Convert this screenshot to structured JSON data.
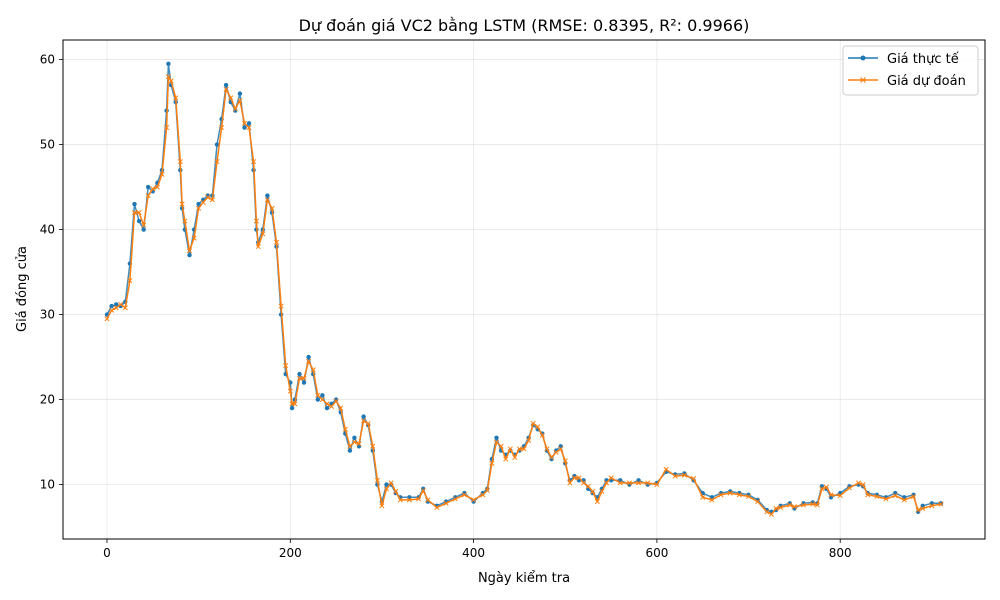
{
  "chart_data": {
    "type": "line",
    "title": "Dự đoán giá VC2 bằng LSTM (RMSE: 0.8395, R²: 0.9966)",
    "xlabel": "Ngày kiểm tra",
    "ylabel": "Giá đóng cửa",
    "xlim": [
      -48,
      958
    ],
    "ylim": [
      3.6,
      62.3
    ],
    "xticks": [
      0,
      200,
      400,
      600,
      800
    ],
    "yticks": [
      10,
      20,
      30,
      40,
      50,
      60
    ],
    "grid": true,
    "legend_position": "top-right",
    "series": [
      {
        "name": "Giá thực tế",
        "color": "#1f77b4",
        "marker": "circle",
        "points": [
          [
            0,
            30
          ],
          [
            5,
            31
          ],
          [
            10,
            31.2
          ],
          [
            15,
            31
          ],
          [
            20,
            31.5
          ],
          [
            25,
            36
          ],
          [
            30,
            43
          ],
          [
            35,
            41
          ],
          [
            40,
            40
          ],
          [
            45,
            45
          ],
          [
            50,
            44.5
          ],
          [
            55,
            45.5
          ],
          [
            60,
            47
          ],
          [
            65,
            54
          ],
          [
            67,
            59.5
          ],
          [
            70,
            57
          ],
          [
            75,
            55
          ],
          [
            80,
            47
          ],
          [
            82,
            42.5
          ],
          [
            85,
            40
          ],
          [
            90,
            37
          ],
          [
            95,
            40
          ],
          [
            100,
            43
          ],
          [
            105,
            43.5
          ],
          [
            110,
            44
          ],
          [
            115,
            44
          ],
          [
            120,
            50
          ],
          [
            125,
            53
          ],
          [
            130,
            57
          ],
          [
            135,
            55
          ],
          [
            140,
            54
          ],
          [
            145,
            56
          ],
          [
            150,
            52
          ],
          [
            155,
            52.5
          ],
          [
            160,
            47
          ],
          [
            163,
            40
          ],
          [
            165,
            38.5
          ],
          [
            170,
            40
          ],
          [
            175,
            44
          ],
          [
            180,
            42
          ],
          [
            185,
            38
          ],
          [
            190,
            30
          ],
          [
            195,
            23
          ],
          [
            200,
            22
          ],
          [
            202,
            19
          ],
          [
            205,
            20
          ],
          [
            210,
            23
          ],
          [
            215,
            22
          ],
          [
            220,
            25
          ],
          [
            225,
            23
          ],
          [
            230,
            20
          ],
          [
            235,
            20.5
          ],
          [
            240,
            19
          ],
          [
            245,
            19.5
          ],
          [
            250,
            20
          ],
          [
            255,
            18.5
          ],
          [
            260,
            16
          ],
          [
            265,
            14
          ],
          [
            270,
            15.5
          ],
          [
            275,
            14.5
          ],
          [
            280,
            18
          ],
          [
            285,
            17
          ],
          [
            290,
            14
          ],
          [
            295,
            10
          ],
          [
            300,
            8
          ],
          [
            305,
            10
          ],
          [
            310,
            10
          ],
          [
            315,
            9
          ],
          [
            320,
            8.5
          ],
          [
            330,
            8.5
          ],
          [
            340,
            8.5
          ],
          [
            345,
            9.5
          ],
          [
            350,
            8
          ],
          [
            360,
            7.5
          ],
          [
            370,
            8
          ],
          [
            380,
            8.5
          ],
          [
            390,
            9
          ],
          [
            400,
            8
          ],
          [
            410,
            9
          ],
          [
            415,
            9.5
          ],
          [
            420,
            13
          ],
          [
            425,
            15.5
          ],
          [
            430,
            14
          ],
          [
            435,
            13.5
          ],
          [
            440,
            14
          ],
          [
            445,
            13.5
          ],
          [
            450,
            14
          ],
          [
            455,
            14.5
          ],
          [
            460,
            15.5
          ],
          [
            465,
            17
          ],
          [
            470,
            16.5
          ],
          [
            475,
            16
          ],
          [
            480,
            14
          ],
          [
            485,
            13
          ],
          [
            490,
            14
          ],
          [
            495,
            14.5
          ],
          [
            500,
            12.5
          ],
          [
            505,
            10.5
          ],
          [
            510,
            11
          ],
          [
            515,
            10.5
          ],
          [
            520,
            10.5
          ],
          [
            525,
            9.5
          ],
          [
            530,
            9
          ],
          [
            535,
            8.5
          ],
          [
            540,
            9.5
          ],
          [
            545,
            10.5
          ],
          [
            550,
            10.5
          ],
          [
            560,
            10.5
          ],
          [
            570,
            10
          ],
          [
            580,
            10.5
          ],
          [
            590,
            10
          ],
          [
            600,
            10.2
          ],
          [
            610,
            11.5
          ],
          [
            620,
            11.2
          ],
          [
            630,
            11.3
          ],
          [
            640,
            10.5
          ],
          [
            650,
            9
          ],
          [
            660,
            8.5
          ],
          [
            670,
            9
          ],
          [
            680,
            9.2
          ],
          [
            690,
            9
          ],
          [
            700,
            8.8
          ],
          [
            710,
            8.2
          ],
          [
            720,
            7
          ],
          [
            725,
            6.8
          ],
          [
            730,
            7
          ],
          [
            735,
            7.5
          ],
          [
            745,
            7.8
          ],
          [
            750,
            7.2
          ],
          [
            760,
            7.8
          ],
          [
            770,
            7.9
          ],
          [
            775,
            7.8
          ],
          [
            780,
            9.8
          ],
          [
            785,
            9.5
          ],
          [
            790,
            8.5
          ],
          [
            800,
            9
          ],
          [
            810,
            9.8
          ],
          [
            820,
            10
          ],
          [
            825,
            9.8
          ],
          [
            830,
            9
          ],
          [
            840,
            8.8
          ],
          [
            850,
            8.5
          ],
          [
            860,
            9
          ],
          [
            870,
            8.5
          ],
          [
            880,
            8.8
          ],
          [
            885,
            6.8
          ],
          [
            890,
            7.5
          ],
          [
            900,
            7.8
          ],
          [
            910,
            7.8
          ]
        ]
      },
      {
        "name": "Giá dự đoán",
        "color": "#ff7f0e",
        "marker": "x",
        "points": [
          [
            0,
            29.5
          ],
          [
            5,
            30.5
          ],
          [
            10,
            30.8
          ],
          [
            15,
            31.2
          ],
          [
            20,
            30.8
          ],
          [
            25,
            34
          ],
          [
            30,
            42
          ],
          [
            35,
            42
          ],
          [
            40,
            40.5
          ],
          [
            45,
            44
          ],
          [
            50,
            44.8
          ],
          [
            55,
            45
          ],
          [
            60,
            46.5
          ],
          [
            65,
            52
          ],
          [
            67,
            58
          ],
          [
            70,
            57.5
          ],
          [
            75,
            55.5
          ],
          [
            80,
            48
          ],
          [
            82,
            43
          ],
          [
            85,
            41
          ],
          [
            90,
            37.5
          ],
          [
            95,
            39
          ],
          [
            100,
            42.5
          ],
          [
            105,
            43.2
          ],
          [
            110,
            43.8
          ],
          [
            115,
            43.5
          ],
          [
            120,
            48
          ],
          [
            125,
            52
          ],
          [
            130,
            56.5
          ],
          [
            135,
            55.5
          ],
          [
            140,
            54.2
          ],
          [
            145,
            55.2
          ],
          [
            150,
            52.5
          ],
          [
            155,
            52
          ],
          [
            160,
            48
          ],
          [
            163,
            41
          ],
          [
            165,
            38
          ],
          [
            170,
            39.5
          ],
          [
            175,
            43.5
          ],
          [
            180,
            42.5
          ],
          [
            185,
            38.5
          ],
          [
            190,
            31
          ],
          [
            195,
            24
          ],
          [
            200,
            21
          ],
          [
            202,
            19.5
          ],
          [
            205,
            19.5
          ],
          [
            210,
            22.5
          ],
          [
            215,
            22.5
          ],
          [
            220,
            24.5
          ],
          [
            225,
            23.5
          ],
          [
            230,
            20.5
          ],
          [
            235,
            20
          ],
          [
            240,
            19.5
          ],
          [
            245,
            19.2
          ],
          [
            250,
            19.8
          ],
          [
            255,
            19
          ],
          [
            260,
            16.5
          ],
          [
            265,
            14.5
          ],
          [
            270,
            15
          ],
          [
            275,
            14.8
          ],
          [
            280,
            17.5
          ],
          [
            285,
            17.2
          ],
          [
            290,
            14.5
          ],
          [
            295,
            10.5
          ],
          [
            300,
            7.5
          ],
          [
            305,
            9.5
          ],
          [
            310,
            10.2
          ],
          [
            315,
            9.2
          ],
          [
            320,
            8.2
          ],
          [
            330,
            8.2
          ],
          [
            340,
            8.3
          ],
          [
            345,
            9.3
          ],
          [
            350,
            8.2
          ],
          [
            360,
            7.3
          ],
          [
            370,
            7.8
          ],
          [
            380,
            8.3
          ],
          [
            390,
            8.8
          ],
          [
            400,
            8.2
          ],
          [
            410,
            8.8
          ],
          [
            415,
            9.3
          ],
          [
            420,
            12.5
          ],
          [
            425,
            15
          ],
          [
            430,
            14.5
          ],
          [
            435,
            13
          ],
          [
            440,
            14.2
          ],
          [
            445,
            13.2
          ],
          [
            450,
            14.2
          ],
          [
            455,
            14.2
          ],
          [
            460,
            15.2
          ],
          [
            465,
            17.2
          ],
          [
            470,
            16.8
          ],
          [
            475,
            15.8
          ],
          [
            480,
            14.2
          ],
          [
            485,
            13.2
          ],
          [
            490,
            13.8
          ],
          [
            495,
            14.2
          ],
          [
            500,
            12.8
          ],
          [
            505,
            10.2
          ],
          [
            510,
            10.8
          ],
          [
            515,
            10.8
          ],
          [
            520,
            10.2
          ],
          [
            525,
            9.8
          ],
          [
            530,
            9.2
          ],
          [
            535,
            8
          ],
          [
            540,
            9.2
          ],
          [
            545,
            10.2
          ],
          [
            550,
            10.8
          ],
          [
            560,
            10.2
          ],
          [
            570,
            10.2
          ],
          [
            580,
            10.2
          ],
          [
            590,
            10.2
          ],
          [
            600,
            10
          ],
          [
            610,
            11.8
          ],
          [
            620,
            11
          ],
          [
            630,
            11.1
          ],
          [
            640,
            10.7
          ],
          [
            650,
            8.5
          ],
          [
            660,
            8.2
          ],
          [
            670,
            8.8
          ],
          [
            680,
            9
          ],
          [
            690,
            8.8
          ],
          [
            700,
            8.6
          ],
          [
            710,
            8
          ],
          [
            720,
            6.8
          ],
          [
            725,
            6.5
          ],
          [
            730,
            7.2
          ],
          [
            735,
            7.3
          ],
          [
            745,
            7.6
          ],
          [
            750,
            7.4
          ],
          [
            760,
            7.6
          ],
          [
            770,
            7.7
          ],
          [
            775,
            7.6
          ],
          [
            780,
            9.5
          ],
          [
            785,
            9.7
          ],
          [
            790,
            8.8
          ],
          [
            800,
            8.7
          ],
          [
            810,
            9.6
          ],
          [
            820,
            10.2
          ],
          [
            825,
            10
          ],
          [
            830,
            8.8
          ],
          [
            840,
            8.6
          ],
          [
            850,
            8.3
          ],
          [
            860,
            8.7
          ],
          [
            870,
            8.2
          ],
          [
            880,
            8.6
          ],
          [
            885,
            7
          ],
          [
            890,
            7.2
          ],
          [
            900,
            7.5
          ],
          [
            910,
            7.7
          ]
        ]
      }
    ]
  }
}
